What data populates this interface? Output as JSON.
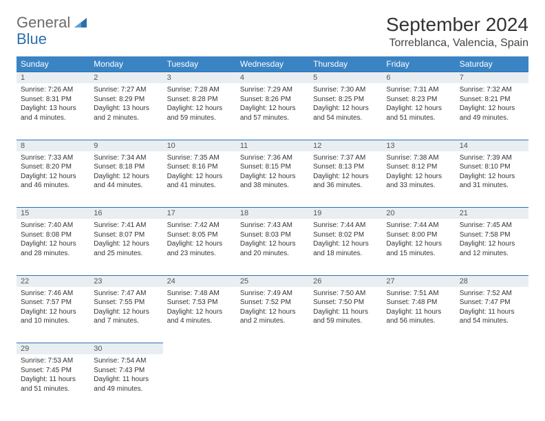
{
  "logo": {
    "text1": "General",
    "text2": "Blue"
  },
  "title": "September 2024",
  "location": "Torreblanca, Valencia, Spain",
  "colors": {
    "header_bg": "#3b84c4",
    "daynum_bg": "#e9eef2",
    "rule": "#2b6fb0",
    "logo_gray": "#6a6a6a",
    "logo_blue": "#2b6fb0"
  },
  "day_headers": [
    "Sunday",
    "Monday",
    "Tuesday",
    "Wednesday",
    "Thursday",
    "Friday",
    "Saturday"
  ],
  "weeks": [
    [
      {
        "n": "1",
        "sr": "7:26 AM",
        "ss": "8:31 PM",
        "dl": "13 hours and 4 minutes."
      },
      {
        "n": "2",
        "sr": "7:27 AM",
        "ss": "8:29 PM",
        "dl": "13 hours and 2 minutes."
      },
      {
        "n": "3",
        "sr": "7:28 AM",
        "ss": "8:28 PM",
        "dl": "12 hours and 59 minutes."
      },
      {
        "n": "4",
        "sr": "7:29 AM",
        "ss": "8:26 PM",
        "dl": "12 hours and 57 minutes."
      },
      {
        "n": "5",
        "sr": "7:30 AM",
        "ss": "8:25 PM",
        "dl": "12 hours and 54 minutes."
      },
      {
        "n": "6",
        "sr": "7:31 AM",
        "ss": "8:23 PM",
        "dl": "12 hours and 51 minutes."
      },
      {
        "n": "7",
        "sr": "7:32 AM",
        "ss": "8:21 PM",
        "dl": "12 hours and 49 minutes."
      }
    ],
    [
      {
        "n": "8",
        "sr": "7:33 AM",
        "ss": "8:20 PM",
        "dl": "12 hours and 46 minutes."
      },
      {
        "n": "9",
        "sr": "7:34 AM",
        "ss": "8:18 PM",
        "dl": "12 hours and 44 minutes."
      },
      {
        "n": "10",
        "sr": "7:35 AM",
        "ss": "8:16 PM",
        "dl": "12 hours and 41 minutes."
      },
      {
        "n": "11",
        "sr": "7:36 AM",
        "ss": "8:15 PM",
        "dl": "12 hours and 38 minutes."
      },
      {
        "n": "12",
        "sr": "7:37 AM",
        "ss": "8:13 PM",
        "dl": "12 hours and 36 minutes."
      },
      {
        "n": "13",
        "sr": "7:38 AM",
        "ss": "8:12 PM",
        "dl": "12 hours and 33 minutes."
      },
      {
        "n": "14",
        "sr": "7:39 AM",
        "ss": "8:10 PM",
        "dl": "12 hours and 31 minutes."
      }
    ],
    [
      {
        "n": "15",
        "sr": "7:40 AM",
        "ss": "8:08 PM",
        "dl": "12 hours and 28 minutes."
      },
      {
        "n": "16",
        "sr": "7:41 AM",
        "ss": "8:07 PM",
        "dl": "12 hours and 25 minutes."
      },
      {
        "n": "17",
        "sr": "7:42 AM",
        "ss": "8:05 PM",
        "dl": "12 hours and 23 minutes."
      },
      {
        "n": "18",
        "sr": "7:43 AM",
        "ss": "8:03 PM",
        "dl": "12 hours and 20 minutes."
      },
      {
        "n": "19",
        "sr": "7:44 AM",
        "ss": "8:02 PM",
        "dl": "12 hours and 18 minutes."
      },
      {
        "n": "20",
        "sr": "7:44 AM",
        "ss": "8:00 PM",
        "dl": "12 hours and 15 minutes."
      },
      {
        "n": "21",
        "sr": "7:45 AM",
        "ss": "7:58 PM",
        "dl": "12 hours and 12 minutes."
      }
    ],
    [
      {
        "n": "22",
        "sr": "7:46 AM",
        "ss": "7:57 PM",
        "dl": "12 hours and 10 minutes."
      },
      {
        "n": "23",
        "sr": "7:47 AM",
        "ss": "7:55 PM",
        "dl": "12 hours and 7 minutes."
      },
      {
        "n": "24",
        "sr": "7:48 AM",
        "ss": "7:53 PM",
        "dl": "12 hours and 4 minutes."
      },
      {
        "n": "25",
        "sr": "7:49 AM",
        "ss": "7:52 PM",
        "dl": "12 hours and 2 minutes."
      },
      {
        "n": "26",
        "sr": "7:50 AM",
        "ss": "7:50 PM",
        "dl": "11 hours and 59 minutes."
      },
      {
        "n": "27",
        "sr": "7:51 AM",
        "ss": "7:48 PM",
        "dl": "11 hours and 56 minutes."
      },
      {
        "n": "28",
        "sr": "7:52 AM",
        "ss": "7:47 PM",
        "dl": "11 hours and 54 minutes."
      }
    ],
    [
      {
        "n": "29",
        "sr": "7:53 AM",
        "ss": "7:45 PM",
        "dl": "11 hours and 51 minutes."
      },
      {
        "n": "30",
        "sr": "7:54 AM",
        "ss": "7:43 PM",
        "dl": "11 hours and 49 minutes."
      },
      null,
      null,
      null,
      null,
      null
    ]
  ],
  "labels": {
    "sunrise": "Sunrise: ",
    "sunset": "Sunset: ",
    "daylight": "Daylight: "
  }
}
